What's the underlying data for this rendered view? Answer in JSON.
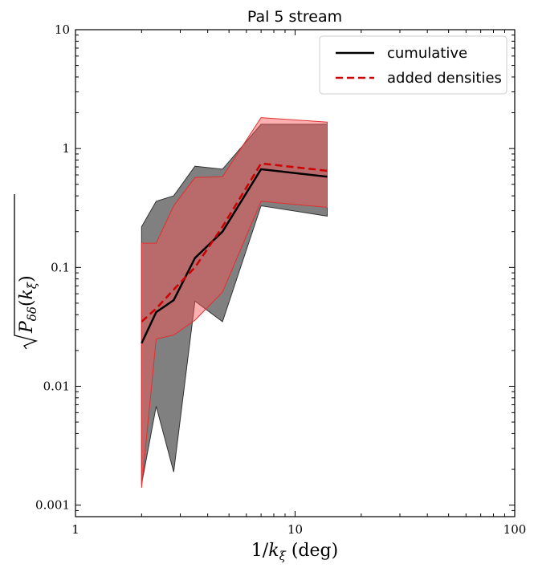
{
  "chart_data": {
    "type": "line",
    "title": "Pal 5 stream",
    "xlabel": "1/k_ξ (deg)",
    "ylabel": "sqrt(P_δδ(k_ξ))",
    "xscale": "log",
    "yscale": "log",
    "xlim": [
      1,
      100
    ],
    "ylim": [
      0.0008,
      10
    ],
    "xticks": [
      {
        "value": 1,
        "label": "1"
      },
      {
        "value": 10,
        "label": "10"
      },
      {
        "value": 100,
        "label": "100"
      }
    ],
    "yticks": [
      {
        "value": 0.001,
        "label": "0.001"
      },
      {
        "value": 0.01,
        "label": "0.01"
      },
      {
        "value": 0.1,
        "label": "0.1"
      },
      {
        "value": 1,
        "label": "1"
      },
      {
        "value": 10,
        "label": "10"
      }
    ],
    "legend_position": "top-right",
    "series": [
      {
        "name": "cumulative",
        "style": "solid",
        "color": "#000000",
        "x": [
          2.0,
          2.33,
          2.8,
          3.5,
          4.67,
          7.0,
          14.0
        ],
        "values": [
          0.023,
          0.042,
          0.053,
          0.12,
          0.2,
          0.67,
          0.58
        ],
        "band_color": "#555555",
        "band_upper": [
          0.22,
          0.36,
          0.4,
          0.71,
          0.67,
          1.6,
          1.6
        ],
        "band_lower": [
          0.0015,
          0.0068,
          0.0019,
          0.052,
          0.035,
          0.33,
          0.27
        ]
      },
      {
        "name": "added densities",
        "style": "dashed",
        "color": "#cc0000",
        "x": [
          2.0,
          2.33,
          2.8,
          3.5,
          4.67,
          7.0,
          14.0
        ],
        "values": [
          0.035,
          0.045,
          0.065,
          0.1,
          0.22,
          0.75,
          0.65
        ],
        "band_color": "#ff5050",
        "band_upper": [
          0.16,
          0.16,
          0.33,
          0.57,
          0.58,
          1.82,
          1.67
        ],
        "band_lower": [
          0.0014,
          0.025,
          0.027,
          0.036,
          0.062,
          0.36,
          0.32
        ]
      }
    ]
  }
}
